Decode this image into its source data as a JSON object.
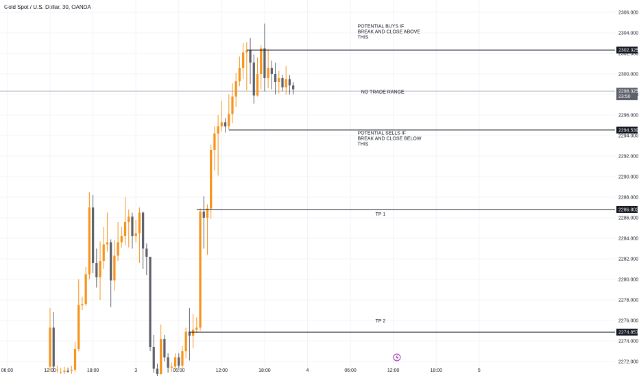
{
  "header": {
    "symbol_title": "Gold Spot / U.S. Dollar, 30, OANDA"
  },
  "colors": {
    "up": "#f7931a",
    "down": "#5d606b",
    "level_line": "#131722",
    "current_line": "#b2b5be",
    "grid": "#f0f3fa",
    "alert": "#9c27b0"
  },
  "icons": {
    "alert_marker": "lightning-bolt-icon"
  },
  "alert_marker_time": 109,
  "chart_data": {
    "type": "candlestick",
    "title": "Gold Spot / U.S. Dollar, 30, OANDA",
    "y_axis": {
      "range": [
        2271.4,
        2307.2
      ],
      "ticks": [
        "2272.000",
        "2274.000",
        "2276.000",
        "2278.000",
        "2280.000",
        "2282.000",
        "2284.000",
        "2286.000",
        "2288.000",
        "2290.000",
        "2292.000",
        "2294.000",
        "2296.000",
        "2298.000",
        "2300.000",
        "2302.000",
        "2304.000",
        "2306.000"
      ]
    },
    "x_axis": {
      "range": [
        -2,
        170
      ],
      "ticks": [
        {
          "t": 0,
          "label": "06:00"
        },
        {
          "t": 12,
          "label": "12:00"
        },
        {
          "t": 24,
          "label": "18:00"
        },
        {
          "t": 36,
          "label": "3"
        },
        {
          "t": 48,
          "label": "06:00"
        },
        {
          "t": 60,
          "label": "12:00"
        },
        {
          "t": 72,
          "label": "18:00"
        },
        {
          "t": 84,
          "label": "4"
        },
        {
          "t": 96,
          "label": "06:00"
        },
        {
          "t": 108,
          "label": "12:00"
        },
        {
          "t": 120,
          "label": "18:00"
        },
        {
          "t": 132,
          "label": "5"
        }
      ]
    },
    "candles_start": 12,
    "candles": [
      [
        2271.5,
        2275.3,
        2277.2,
        2271.0
      ],
      [
        2275.3,
        2271.5,
        2276.8,
        2271.0
      ],
      [
        2271.2,
        2271.2,
        2271.6,
        2270.9
      ],
      [
        2271.0,
        2271.0,
        2271.4,
        2270.8
      ],
      [
        2271.0,
        2271.1,
        2271.5,
        2270.8
      ],
      [
        2271.1,
        2271.0,
        2271.4,
        2270.9
      ],
      [
        2271.1,
        2271.2,
        2271.6,
        2270.8
      ],
      [
        2271.2,
        2273.2,
        2273.9,
        2271.0
      ],
      [
        2273.2,
        2277.5,
        2280.0,
        2273.0
      ],
      [
        2277.5,
        2277.6,
        2278.3,
        2277.0
      ],
      [
        2277.6,
        2280.5,
        2281.2,
        2277.4
      ],
      [
        2280.5,
        2287.0,
        2288.5,
        2280.0
      ],
      [
        2287.0,
        2281.6,
        2288.2,
        2280.6
      ],
      [
        2281.6,
        2280.2,
        2283.0,
        2279.2
      ],
      [
        2280.2,
        2281.8,
        2283.7,
        2278.0
      ],
      [
        2281.8,
        2283.4,
        2285.1,
        2281.0
      ],
      [
        2283.4,
        2283.6,
        2286.5,
        2282.7
      ],
      [
        2283.6,
        2279.9,
        2283.9,
        2277.3
      ],
      [
        2279.9,
        2282.3,
        2283.8,
        2278.9
      ],
      [
        2282.3,
        2283.6,
        2285.6,
        2281.8
      ],
      [
        2283.6,
        2284.2,
        2285.1,
        2283.1
      ],
      [
        2284.2,
        2285.6,
        2288.0,
        2283.3
      ],
      [
        2285.6,
        2286.1,
        2286.8,
        2283.1
      ],
      [
        2286.1,
        2284.2,
        2286.5,
        2283.0
      ],
      [
        2284.2,
        2284.5,
        2285.8,
        2283.6
      ],
      [
        2284.5,
        2286.5,
        2287.0,
        2281.6
      ],
      [
        2286.5,
        2283.0,
        2286.6,
        2281.0
      ],
      [
        2283.0,
        2282.2,
        2283.5,
        2280.4
      ],
      [
        2282.2,
        2273.4,
        2282.2,
        2273.0
      ],
      [
        2273.4,
        2271.3,
        2274.6,
        2270.9
      ],
      [
        2271.3,
        2270.8,
        2271.8,
        2270.6
      ],
      [
        2270.8,
        2274.2,
        2275.6,
        2270.7
      ],
      [
        2274.2,
        2272.4,
        2274.6,
        2272.0
      ],
      [
        2272.4,
        2271.4,
        2272.8,
        2270.9
      ],
      [
        2271.4,
        2271.5,
        2271.9,
        2271.0
      ],
      [
        2271.5,
        2272.4,
        2272.8,
        2271.2
      ],
      [
        2272.4,
        2271.6,
        2272.8,
        2271.3
      ],
      [
        2271.6,
        2273.0,
        2273.5,
        2271.4
      ],
      [
        2273.0,
        2274.9,
        2275.3,
        2272.3
      ],
      [
        2274.9,
        2274.5,
        2277.2,
        2272.1
      ],
      [
        2274.5,
        2275.1,
        2276.6,
        2273.3
      ],
      [
        2275.1,
        2275.3,
        2276.3,
        2274.8
      ],
      [
        2275.3,
        2286.6,
        2286.9,
        2275.0
      ],
      [
        2286.6,
        2286.0,
        2288.1,
        2283.0
      ],
      [
        2286.0,
        2286.9,
        2287.3,
        2282.4
      ],
      [
        2286.9,
        2292.6,
        2293.1,
        2285.9
      ],
      [
        2292.6,
        2294.2,
        2294.9,
        2290.6
      ],
      [
        2294.2,
        2294.9,
        2296.0,
        2290.1
      ],
      [
        2294.9,
        2295.3,
        2297.4,
        2294.4
      ],
      [
        2295.3,
        2294.9,
        2295.7,
        2294.3
      ],
      [
        2294.9,
        2296.1,
        2298.0,
        2294.6
      ],
      [
        2296.1,
        2297.8,
        2299.1,
        2295.2
      ],
      [
        2297.8,
        2299.3,
        2300.1,
        2296.8
      ],
      [
        2299.3,
        2300.6,
        2301.7,
        2298.8
      ],
      [
        2300.6,
        2302.1,
        2303.0,
        2299.5
      ],
      [
        2302.1,
        2302.3,
        2303.1,
        2298.4
      ],
      [
        2302.3,
        2301.1,
        2303.5,
        2299.0
      ],
      [
        2301.1,
        2297.9,
        2301.9,
        2297.1
      ],
      [
        2297.9,
        2300.0,
        2301.6,
        2297.8
      ],
      [
        2300.0,
        2302.5,
        2302.8,
        2298.5
      ],
      [
        2302.5,
        2299.6,
        2304.9,
        2298.3
      ],
      [
        2299.6,
        2300.6,
        2302.4,
        2298.6
      ],
      [
        2300.6,
        2300.0,
        2301.3,
        2298.5
      ],
      [
        2300.0,
        2299.2,
        2301.1,
        2298.0
      ],
      [
        2299.2,
        2299.6,
        2300.3,
        2298.1
      ],
      [
        2299.6,
        2298.7,
        2299.9,
        2298.3
      ],
      [
        2298.7,
        2299.5,
        2300.8,
        2298.0
      ],
      [
        2299.5,
        2298.9,
        2299.9,
        2298.0
      ],
      [
        2298.9,
        2298.5,
        2299.2,
        2298.0
      ]
    ],
    "levels": [
      {
        "price": 2302.325,
        "label": "2302.325",
        "start": 67,
        "note_lines": [
          "POTENTIAL BUYS IF",
          "BREAK AND CLOSE ABOVE",
          "THIS"
        ],
        "note_price": 2304.5,
        "note_time": 98
      },
      {
        "price": 2294.539,
        "label": "2294.539",
        "start": 62,
        "note_lines": [
          "POTENTIAL SELLS IF",
          "BREAK AND CLOSE BELOW",
          "THIS"
        ],
        "note_price": 2294.1,
        "note_time": 98
      },
      {
        "price": 2286.802,
        "label": "2286.802",
        "start": 53,
        "note_lines": [
          "TP 1"
        ],
        "note_price": 2286.2,
        "note_time": 103
      },
      {
        "price": 2274.857,
        "label": "2274.857",
        "start": 51,
        "note_lines": [
          "TP 2"
        ],
        "note_price": 2275.8,
        "note_time": 103
      }
    ],
    "current_price": {
      "price": 2298.325,
      "label": "2298.325",
      "countdown": "23:50"
    },
    "range_note": {
      "text": "NO TRADE RANGE",
      "price": 2298.1,
      "time": 99
    }
  }
}
